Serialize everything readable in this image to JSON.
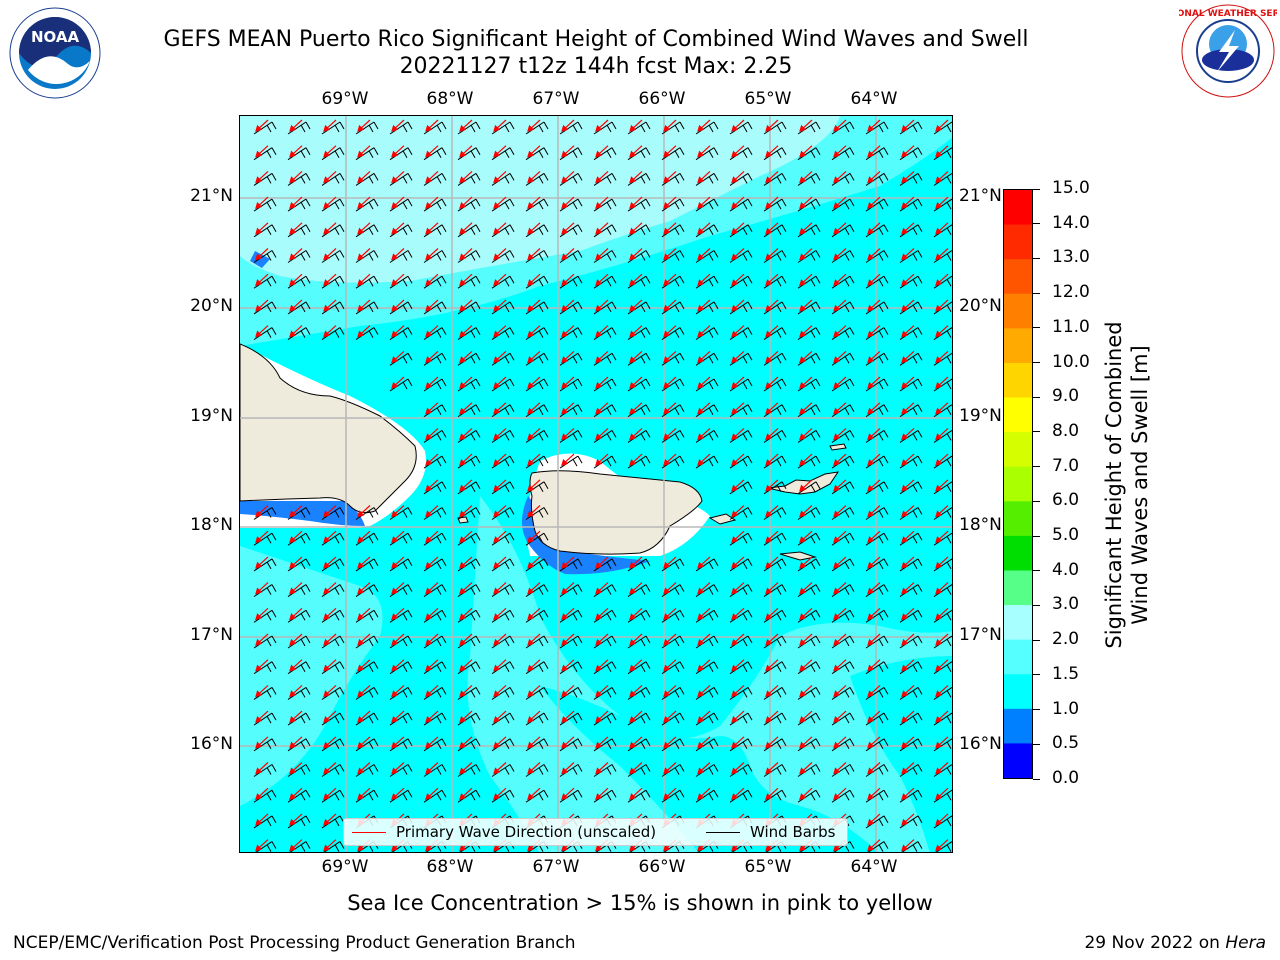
{
  "title": {
    "line1": "GEFS MEAN Puerto Rico Significant Height of Combined Wind Waves and Swell",
    "line2": "20221127 t12z 144h fcst   Max: 2.25"
  },
  "logos": {
    "left": {
      "name": "noaa-logo",
      "text": "NOAA"
    },
    "right": {
      "name": "nws-logo",
      "text": "NATIONAL WEATHER SERVICE"
    }
  },
  "map": {
    "lon_labels": [
      "69°W",
      "68°W",
      "67°W",
      "66°W",
      "65°W",
      "64°W"
    ],
    "lat_labels": [
      "21°N",
      "20°N",
      "19°N",
      "18°N",
      "17°N",
      "16°N"
    ],
    "colors": {
      "ocean_main": "#00ffff",
      "ocean_light": "#55fdfd",
      "ocean_lighter": "#a8fcfc",
      "shallow": "#1a82ff",
      "land": "#efebdc",
      "no_data": "#ffffff",
      "grid": "#b8b8b8",
      "wave_arrow": "#ff0000",
      "wind_barb": "#000000"
    }
  },
  "legend": {
    "wave_label": "Primary Wave Direction (unscaled)",
    "wind_label": "Wind Barbs"
  },
  "colorbar": {
    "label_line1": "Significant Height of Combined",
    "label_line2": "Wind Waves and Swell [m]",
    "ticks": [
      "15.0",
      "14.0",
      "13.0",
      "12.0",
      "11.0",
      "10.0",
      "9.0",
      "8.0",
      "7.0",
      "6.0",
      "5.0",
      "4.0",
      "3.0",
      "2.0",
      "1.5",
      "1.0",
      "0.5",
      "0.0"
    ],
    "colors_top_to_bottom": [
      "#ff0000",
      "#ff2a00",
      "#ff5500",
      "#ff8000",
      "#ffaa00",
      "#ffd500",
      "#ffff00",
      "#d5ff00",
      "#aaff00",
      "#55ee00",
      "#00dd00",
      "#55ff88",
      "#a8ffff",
      "#55ffff",
      "#00ffff",
      "#0080ff",
      "#0000ff"
    ]
  },
  "footer": {
    "note": "Sea Ice Concentration > 15% is shown in pink to yellow",
    "left": "NCEP/EMC/Verification Post Processing Product Generation Branch",
    "right_prefix": "29 Nov 2022 on ",
    "right_host": "Hera"
  }
}
